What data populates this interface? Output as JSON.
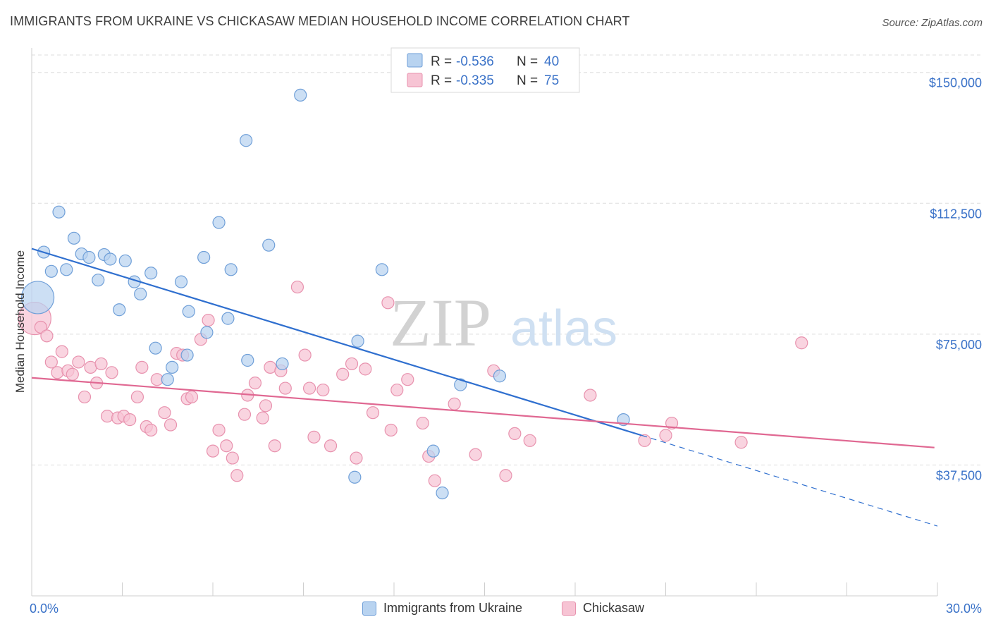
{
  "title": "IMMIGRANTS FROM UKRAINE VS CHICKASAW MEDIAN HOUSEHOLD INCOME CORRELATION CHART",
  "source": "Source: ZipAtlas.com",
  "watermark": {
    "zip": "ZIP",
    "atlas": "atlas"
  },
  "colors": {
    "blue_fill": "#b8d3f0",
    "blue_stroke": "#6f9fd8",
    "blue_line": "#2f6fcf",
    "pink_fill": "#f7c4d4",
    "pink_stroke": "#e892ae",
    "pink_line": "#e06892",
    "axis_label": "#3a72c8",
    "grid": "#dddddd"
  },
  "legend_top": {
    "blue": {
      "r_label": "R =",
      "r_value": "-0.536",
      "n_label": "N =",
      "n_value": "40"
    },
    "pink": {
      "r_label": "R =",
      "r_value": "-0.335",
      "n_label": "N =",
      "n_value": "75"
    }
  },
  "legend_bottom": [
    "Immigrants from Ukraine",
    "Chickasaw"
  ],
  "chart_data": {
    "type": "scatter",
    "xlabel": "",
    "ylabel": "Median Household Income",
    "xlim": [
      0,
      30
    ],
    "ylim": [
      0,
      155000
    ],
    "x_tick_labels": [
      "0.0%",
      "30.0%"
    ],
    "y_ticks": [
      37500,
      75000,
      112500,
      150000
    ],
    "y_tick_labels": [
      "$37,500",
      "$75,000",
      "$112,500",
      "$150,000"
    ],
    "grid": true,
    "legend_position": "top-center",
    "series": [
      {
        "name": "Immigrants from Ukraine",
        "color": "#b8d3f0",
        "trend": {
          "x": [
            0.0,
            20.2
          ],
          "y": [
            99500,
            46000
          ],
          "dashed_to": [
            30.0,
            20000
          ]
        },
        "points": [
          {
            "x": 0.2,
            "y": 85500,
            "big": true
          },
          {
            "x": 0.4,
            "y": 98500
          },
          {
            "x": 0.65,
            "y": 93000
          },
          {
            "x": 0.9,
            "y": 110000
          },
          {
            "x": 1.15,
            "y": 93500
          },
          {
            "x": 1.4,
            "y": 102500
          },
          {
            "x": 1.65,
            "y": 98000
          },
          {
            "x": 1.9,
            "y": 97000
          },
          {
            "x": 2.2,
            "y": 90500
          },
          {
            "x": 2.4,
            "y": 97800
          },
          {
            "x": 2.6,
            "y": 96500
          },
          {
            "x": 2.9,
            "y": 82000
          },
          {
            "x": 3.1,
            "y": 96000
          },
          {
            "x": 3.4,
            "y": 90000
          },
          {
            "x": 3.6,
            "y": 86500
          },
          {
            "x": 3.95,
            "y": 92500
          },
          {
            "x": 4.1,
            "y": 71000
          },
          {
            "x": 4.5,
            "y": 62000
          },
          {
            "x": 4.65,
            "y": 65500
          },
          {
            "x": 4.95,
            "y": 90000
          },
          {
            "x": 5.15,
            "y": 69000
          },
          {
            "x": 5.2,
            "y": 81500
          },
          {
            "x": 5.7,
            "y": 97000
          },
          {
            "x": 5.8,
            "y": 75500
          },
          {
            "x": 6.2,
            "y": 107000
          },
          {
            "x": 6.5,
            "y": 79500
          },
          {
            "x": 6.6,
            "y": 93500
          },
          {
            "x": 7.1,
            "y": 130500
          },
          {
            "x": 7.85,
            "y": 100500
          },
          {
            "x": 7.15,
            "y": 67500
          },
          {
            "x": 8.3,
            "y": 66500
          },
          {
            "x": 8.9,
            "y": 143500
          },
          {
            "x": 10.8,
            "y": 73000
          },
          {
            "x": 11.6,
            "y": 93500
          },
          {
            "x": 10.7,
            "y": 34000
          },
          {
            "x": 13.3,
            "y": 41500
          },
          {
            "x": 14.2,
            "y": 60500
          },
          {
            "x": 13.6,
            "y": 29500
          },
          {
            "x": 15.5,
            "y": 63000
          },
          {
            "x": 19.6,
            "y": 50500
          }
        ]
      },
      {
        "name": "Chickasaw",
        "color": "#f7c4d4",
        "trend": {
          "x": [
            0.0,
            29.9
          ],
          "y": [
            62500,
            42500
          ]
        },
        "points": [
          {
            "x": 0.1,
            "y": 79500,
            "big": true
          },
          {
            "x": 0.3,
            "y": 77000
          },
          {
            "x": 0.5,
            "y": 74500
          },
          {
            "x": 0.65,
            "y": 67000
          },
          {
            "x": 0.85,
            "y": 64000
          },
          {
            "x": 1.0,
            "y": 70000
          },
          {
            "x": 1.2,
            "y": 64500
          },
          {
            "x": 1.35,
            "y": 63500
          },
          {
            "x": 1.55,
            "y": 67000
          },
          {
            "x": 1.75,
            "y": 57000
          },
          {
            "x": 1.95,
            "y": 65500
          },
          {
            "x": 2.15,
            "y": 61000
          },
          {
            "x": 2.3,
            "y": 66500
          },
          {
            "x": 2.5,
            "y": 51500
          },
          {
            "x": 2.65,
            "y": 64000
          },
          {
            "x": 2.85,
            "y": 51000
          },
          {
            "x": 3.05,
            "y": 51500
          },
          {
            "x": 3.25,
            "y": 50500
          },
          {
            "x": 3.5,
            "y": 57000
          },
          {
            "x": 3.65,
            "y": 65500
          },
          {
            "x": 3.8,
            "y": 48500
          },
          {
            "x": 3.95,
            "y": 47500
          },
          {
            "x": 4.15,
            "y": 62000
          },
          {
            "x": 4.4,
            "y": 52500
          },
          {
            "x": 4.6,
            "y": 49000
          },
          {
            "x": 4.8,
            "y": 69500
          },
          {
            "x": 5.0,
            "y": 69000
          },
          {
            "x": 5.15,
            "y": 56500
          },
          {
            "x": 5.3,
            "y": 57000
          },
          {
            "x": 5.6,
            "y": 73500
          },
          {
            "x": 5.85,
            "y": 79000
          },
          {
            "x": 6.0,
            "y": 41500
          },
          {
            "x": 6.2,
            "y": 47500
          },
          {
            "x": 6.45,
            "y": 43000
          },
          {
            "x": 6.65,
            "y": 39500
          },
          {
            "x": 6.8,
            "y": 34500
          },
          {
            "x": 7.05,
            "y": 52000
          },
          {
            "x": 7.15,
            "y": 57500
          },
          {
            "x": 7.4,
            "y": 61000
          },
          {
            "x": 7.65,
            "y": 51000
          },
          {
            "x": 7.75,
            "y": 54500
          },
          {
            "x": 7.9,
            "y": 65500
          },
          {
            "x": 8.05,
            "y": 43000
          },
          {
            "x": 8.25,
            "y": 64500
          },
          {
            "x": 8.4,
            "y": 59500
          },
          {
            "x": 8.8,
            "y": 88500
          },
          {
            "x": 9.05,
            "y": 69000
          },
          {
            "x": 9.2,
            "y": 59500
          },
          {
            "x": 9.35,
            "y": 45500
          },
          {
            "x": 9.65,
            "y": 59000
          },
          {
            "x": 9.9,
            "y": 43000
          },
          {
            "x": 10.3,
            "y": 63500
          },
          {
            "x": 10.75,
            "y": 39500
          },
          {
            "x": 11.05,
            "y": 65000
          },
          {
            "x": 10.6,
            "y": 66500
          },
          {
            "x": 11.3,
            "y": 52500
          },
          {
            "x": 11.8,
            "y": 84000
          },
          {
            "x": 11.9,
            "y": 47500
          },
          {
            "x": 12.1,
            "y": 59000
          },
          {
            "x": 12.45,
            "y": 62000
          },
          {
            "x": 12.95,
            "y": 49500
          },
          {
            "x": 13.15,
            "y": 40000
          },
          {
            "x": 13.35,
            "y": 33000
          },
          {
            "x": 14.0,
            "y": 55000
          },
          {
            "x": 14.7,
            "y": 40500
          },
          {
            "x": 15.3,
            "y": 64500
          },
          {
            "x": 15.7,
            "y": 34500
          },
          {
            "x": 16.0,
            "y": 46500
          },
          {
            "x": 16.5,
            "y": 44500
          },
          {
            "x": 18.5,
            "y": 57500
          },
          {
            "x": 20.3,
            "y": 44500
          },
          {
            "x": 21.0,
            "y": 46000
          },
          {
            "x": 21.2,
            "y": 49500
          },
          {
            "x": 23.5,
            "y": 44000
          },
          {
            "x": 25.5,
            "y": 72500
          }
        ]
      }
    ]
  }
}
